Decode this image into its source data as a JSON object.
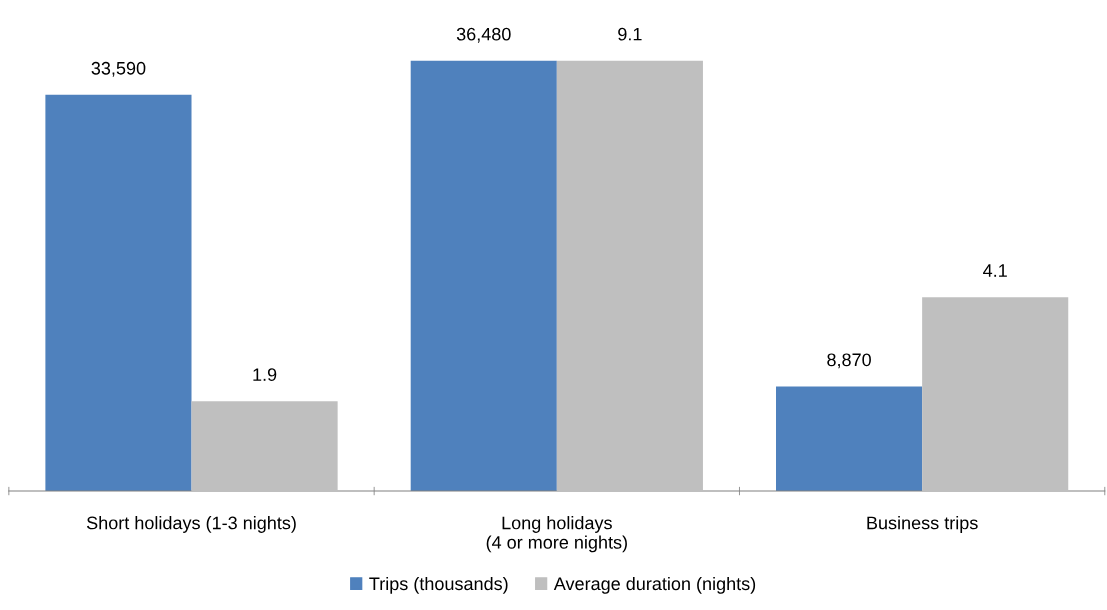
{
  "chart_data": {
    "type": "bar",
    "categories": [
      "Short holidays (1-3 nights)",
      "Long holidays (4 or more nights)",
      "Business trips"
    ],
    "series": [
      {
        "name": "Trips (thousands)",
        "color": "#4f81bd",
        "values": [
          33590,
          36480,
          8870
        ],
        "value_labels": [
          "33,590",
          "36,480",
          "8,870"
        ]
      },
      {
        "name": "Average duration (nights)",
        "color": "#bfbfbf",
        "values": [
          1.9,
          9.1,
          4.1
        ],
        "value_labels": [
          "1.9",
          "9.1",
          "4.1"
        ],
        "axis": "y2"
      }
    ],
    "tick_labels": "x",
    "grid": false,
    "legend": "bottom"
  }
}
